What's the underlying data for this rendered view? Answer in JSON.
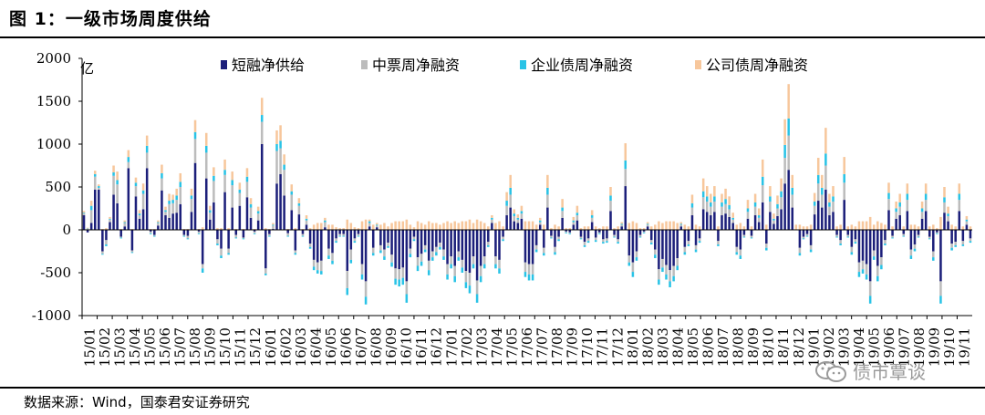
{
  "figure": {
    "title": "图 1：一级市场周度供给",
    "source": "数据来源：Wind，国泰君安证券研究",
    "watermark": "债市覃谈"
  },
  "chart_data": {
    "type": "bar",
    "stacked": true,
    "unit": "亿",
    "ylim": [
      -1000,
      2000
    ],
    "yticks": [
      -1000,
      -500,
      0,
      500,
      1000,
      1500,
      2000
    ],
    "legend_position": "top-center",
    "grid": false,
    "x_tick_labels": [
      "15/01",
      "15/02",
      "15/03",
      "15/04",
      "15/05",
      "15/06",
      "15/07",
      "15/08",
      "15/09",
      "15/10",
      "15/11",
      "15/12",
      "16/01",
      "16/02",
      "16/03",
      "16/04",
      "16/05",
      "16/06",
      "16/07",
      "16/08",
      "16/09",
      "16/10",
      "16/11",
      "16/12",
      "17/01",
      "17/02",
      "17/03",
      "17/04",
      "17/05",
      "17/06",
      "17/07",
      "17/08",
      "17/09",
      "17/10",
      "17/11",
      "17/12",
      "18/01",
      "18/02",
      "18/03",
      "18/04",
      "18/05",
      "18/06",
      "18/07",
      "18/08",
      "18/09",
      "18/10",
      "18/11",
      "18/12",
      "19/01",
      "19/02",
      "19/03",
      "19/04",
      "19/05",
      "19/06",
      "19/07",
      "19/08",
      "19/09",
      "19/10",
      "19/11"
    ],
    "weeks_per_label": 4,
    "series": [
      {
        "name": "短融净供给",
        "color": "#1c1f7a",
        "values": [
          170,
          -30,
          80,
          470,
          470,
          -250,
          -120,
          90,
          410,
          310,
          -80,
          40,
          720,
          -240,
          390,
          130,
          240,
          720,
          -20,
          -60,
          50,
          460,
          170,
          140,
          190,
          200,
          300,
          -60,
          -70,
          210,
          780,
          -20,
          -400,
          600,
          120,
          320,
          -110,
          -220,
          440,
          -220,
          260,
          -60,
          280,
          -90,
          380,
          140,
          -20,
          110,
          1000,
          -450,
          -50,
          10,
          540,
          650,
          400,
          -40,
          230,
          -240,
          180,
          -50,
          60,
          -160,
          -350,
          -380,
          -360,
          30,
          -220,
          -270,
          -100,
          -50,
          -50,
          -480,
          -230,
          -100,
          -50,
          -400,
          -600,
          40,
          -210,
          30,
          -180,
          -230,
          -150,
          -290,
          -450,
          -460,
          -440,
          -600,
          -220,
          -80,
          -320,
          -280,
          -180,
          -360,
          -250,
          -200,
          -150,
          -230,
          -400,
          -310,
          -420,
          -250,
          -350,
          -480,
          -500,
          -310,
          -590,
          -420,
          -310,
          -140,
          80,
          -310,
          -350,
          -80,
          170,
          260,
          100,
          80,
          130,
          -380,
          -400,
          -400,
          -180,
          60,
          -210,
          260,
          -70,
          -200,
          -80,
          140,
          -20,
          -30,
          60,
          110,
          -80,
          -140,
          -100,
          90,
          -90,
          -30,
          -110,
          -100,
          220,
          -60,
          -110,
          40,
          510,
          -300,
          -380,
          -250,
          -60,
          -20,
          40,
          -120,
          -230,
          -460,
          -340,
          -410,
          -470,
          -420,
          -330,
          40,
          -200,
          -130,
          170,
          -180,
          -100,
          240,
          210,
          170,
          210,
          -130,
          170,
          190,
          150,
          80,
          -200,
          -230,
          -60,
          130,
          -70,
          170,
          90,
          320,
          -160,
          210,
          70,
          160,
          240,
          540,
          700,
          260,
          0,
          -210,
          -80,
          -50,
          -180,
          180,
          340,
          260,
          470,
          170,
          210,
          -60,
          -120,
          350,
          -60,
          -200,
          -110,
          -380,
          -360,
          -400,
          -600,
          -240,
          -420,
          -320,
          -120,
          230,
          -70,
          130,
          170,
          -50,
          220,
          -230,
          -170,
          -60,
          130,
          220,
          -80,
          -250,
          -30,
          -600,
          200,
          100,
          -160,
          -140,
          220,
          -130,
          60,
          -100
        ]
      },
      {
        "name": "中票周净融资",
        "color": "#bcbcbc",
        "values": [
          20,
          10,
          150,
          150,
          20,
          -30,
          -50,
          30,
          220,
          220,
          -10,
          40,
          70,
          -20,
          120,
          40,
          180,
          180,
          -20,
          -10,
          30,
          140,
          40,
          160,
          120,
          150,
          200,
          -10,
          -30,
          150,
          280,
          -20,
          -50,
          300,
          80,
          250,
          -50,
          -80,
          200,
          -50,
          260,
          -30,
          150,
          -10,
          180,
          120,
          -20,
          80,
          260,
          -60,
          -20,
          40,
          380,
          300,
          300,
          -30,
          180,
          -30,
          100,
          -20,
          50,
          -40,
          -80,
          -90,
          -120,
          60,
          -80,
          -90,
          -30,
          -20,
          -20,
          -200,
          -120,
          -30,
          -20,
          -120,
          -180,
          40,
          -60,
          20,
          -60,
          -80,
          -40,
          -90,
          -120,
          -120,
          -120,
          -150,
          -60,
          -30,
          -100,
          -90,
          -50,
          -110,
          -70,
          -60,
          -50,
          -80,
          -120,
          -90,
          -120,
          -70,
          -90,
          -130,
          -150,
          -90,
          -160,
          -120,
          -90,
          -40,
          40,
          -90,
          -100,
          -30,
          110,
          150,
          60,
          40,
          60,
          -110,
          -120,
          -120,
          -50,
          30,
          -60,
          150,
          -20,
          -60,
          -30,
          80,
          -10,
          -10,
          30,
          60,
          -20,
          -40,
          -30,
          50,
          -30,
          -10,
          -30,
          -30,
          120,
          -20,
          -30,
          20,
          200,
          -80,
          -110,
          -70,
          -20,
          -10,
          20,
          -30,
          -60,
          -120,
          -100,
          -110,
          -130,
          -120,
          -90,
          20,
          -60,
          -40,
          90,
          -50,
          -30,
          140,
          120,
          100,
          120,
          -40,
          100,
          110,
          90,
          40,
          -60,
          -70,
          -20,
          80,
          -20,
          100,
          50,
          200,
          -50,
          120,
          40,
          90,
          140,
          300,
          400,
          150,
          0,
          -60,
          -20,
          -20,
          -50,
          100,
          200,
          150,
          280,
          100,
          120,
          -20,
          -40,
          200,
          -20,
          -60,
          -30,
          -110,
          -100,
          -120,
          -170,
          -70,
          -120,
          -90,
          -40,
          130,
          -20,
          80,
          100,
          -20,
          130,
          -70,
          -50,
          -20,
          80,
          130,
          -20,
          -70,
          -10,
          -170,
          120,
          60,
          -50,
          -40,
          130,
          -40,
          40,
          -30
        ]
      },
      {
        "name": "企业债周净融资",
        "color": "#29c3e6",
        "values": [
          10,
          5,
          50,
          30,
          20,
          -10,
          -20,
          10,
          40,
          50,
          -10,
          10,
          60,
          -10,
          40,
          20,
          40,
          80,
          -10,
          -10,
          10,
          60,
          20,
          40,
          40,
          50,
          60,
          -10,
          -10,
          40,
          80,
          -10,
          -50,
          80,
          30,
          60,
          -20,
          -30,
          60,
          -20,
          60,
          -10,
          40,
          -10,
          60,
          40,
          -10,
          30,
          80,
          -20,
          -10,
          10,
          80,
          90,
          60,
          -10,
          40,
          -20,
          30,
          -10,
          20,
          -20,
          -40,
          -40,
          -40,
          20,
          -40,
          -40,
          -20,
          -10,
          -10,
          -80,
          -40,
          -20,
          -10,
          -60,
          -90,
          20,
          -30,
          10,
          -30,
          -40,
          -20,
          -50,
          -70,
          -80,
          -80,
          -100,
          -40,
          -20,
          -60,
          -50,
          -30,
          -60,
          -40,
          -40,
          -30,
          -40,
          -60,
          -50,
          -70,
          -40,
          -60,
          -70,
          -90,
          -50,
          -100,
          -70,
          -50,
          -20,
          20,
          -50,
          -60,
          -20,
          60,
          80,
          30,
          20,
          30,
          -60,
          -70,
          -70,
          -30,
          20,
          -30,
          80,
          -10,
          -30,
          -20,
          40,
          -10,
          -10,
          20,
          30,
          -10,
          -20,
          -20,
          30,
          -20,
          -10,
          -20,
          -20,
          60,
          -10,
          -20,
          10,
          100,
          -40,
          -60,
          -40,
          -10,
          -10,
          10,
          -20,
          -40,
          -60,
          -50,
          -60,
          -70,
          -60,
          -50,
          10,
          -30,
          -20,
          50,
          -30,
          -20,
          70,
          60,
          50,
          60,
          -20,
          50,
          60,
          50,
          20,
          -30,
          -40,
          -10,
          40,
          -10,
          50,
          30,
          100,
          -30,
          60,
          20,
          50,
          70,
          150,
          200,
          80,
          0,
          -30,
          -10,
          -10,
          -30,
          50,
          100,
          80,
          140,
          50,
          60,
          -10,
          -20,
          100,
          -10,
          -30,
          -20,
          -60,
          -50,
          -60,
          -90,
          -40,
          -60,
          -50,
          -20,
          70,
          -10,
          40,
          50,
          -10,
          70,
          -40,
          -30,
          -10,
          40,
          70,
          -10,
          -40,
          -10,
          -90,
          60,
          30,
          -30,
          -20,
          70,
          -20,
          20,
          -20
        ]
      },
      {
        "name": "公司债周净融资",
        "color": "#f7c79c",
        "values": [
          20,
          10,
          60,
          40,
          20,
          10,
          20,
          20,
          80,
          100,
          10,
          20,
          80,
          10,
          60,
          40,
          80,
          120,
          10,
          10,
          20,
          100,
          40,
          80,
          60,
          80,
          100,
          10,
          10,
          80,
          140,
          10,
          30,
          150,
          50,
          100,
          20,
          20,
          120,
          20,
          100,
          10,
          80,
          10,
          100,
          70,
          10,
          50,
          200,
          20,
          10,
          20,
          160,
          180,
          120,
          10,
          80,
          20,
          60,
          10,
          40,
          20,
          60,
          80,
          80,
          30,
          60,
          60,
          30,
          20,
          20,
          120,
          80,
          30,
          20,
          100,
          120,
          20,
          60,
          20,
          60,
          80,
          40,
          80,
          100,
          100,
          100,
          120,
          60,
          30,
          100,
          80,
          60,
          100,
          80,
          80,
          60,
          80,
          100,
          80,
          100,
          80,
          100,
          100,
          120,
          80,
          120,
          100,
          80,
          40,
          30,
          80,
          100,
          40,
          100,
          150,
          50,
          40,
          60,
          100,
          100,
          100,
          60,
          30,
          60,
          150,
          20,
          60,
          40,
          100,
          20,
          20,
          40,
          80,
          20,
          40,
          40,
          60,
          40,
          20,
          40,
          40,
          100,
          20,
          40,
          20,
          200,
          80,
          100,
          80,
          20,
          20,
          20,
          40,
          60,
          100,
          80,
          100,
          100,
          100,
          80,
          20,
          60,
          40,
          100,
          60,
          40,
          150,
          120,
          100,
          120,
          40,
          100,
          120,
          100,
          60,
          60,
          80,
          40,
          100,
          40,
          100,
          80,
          200,
          60,
          120,
          60,
          100,
          150,
          300,
          400,
          150,
          60,
          60,
          40,
          40,
          60,
          100,
          200,
          150,
          300,
          100,
          120,
          40,
          60,
          200,
          40,
          60,
          40,
          100,
          100,
          100,
          150,
          60,
          100,
          80,
          60,
          120,
          40,
          80,
          100,
          40,
          120,
          60,
          60,
          40,
          80,
          120,
          40,
          60,
          20,
          150,
          120,
          80,
          60,
          40,
          120,
          40,
          40,
          40
        ]
      }
    ]
  }
}
